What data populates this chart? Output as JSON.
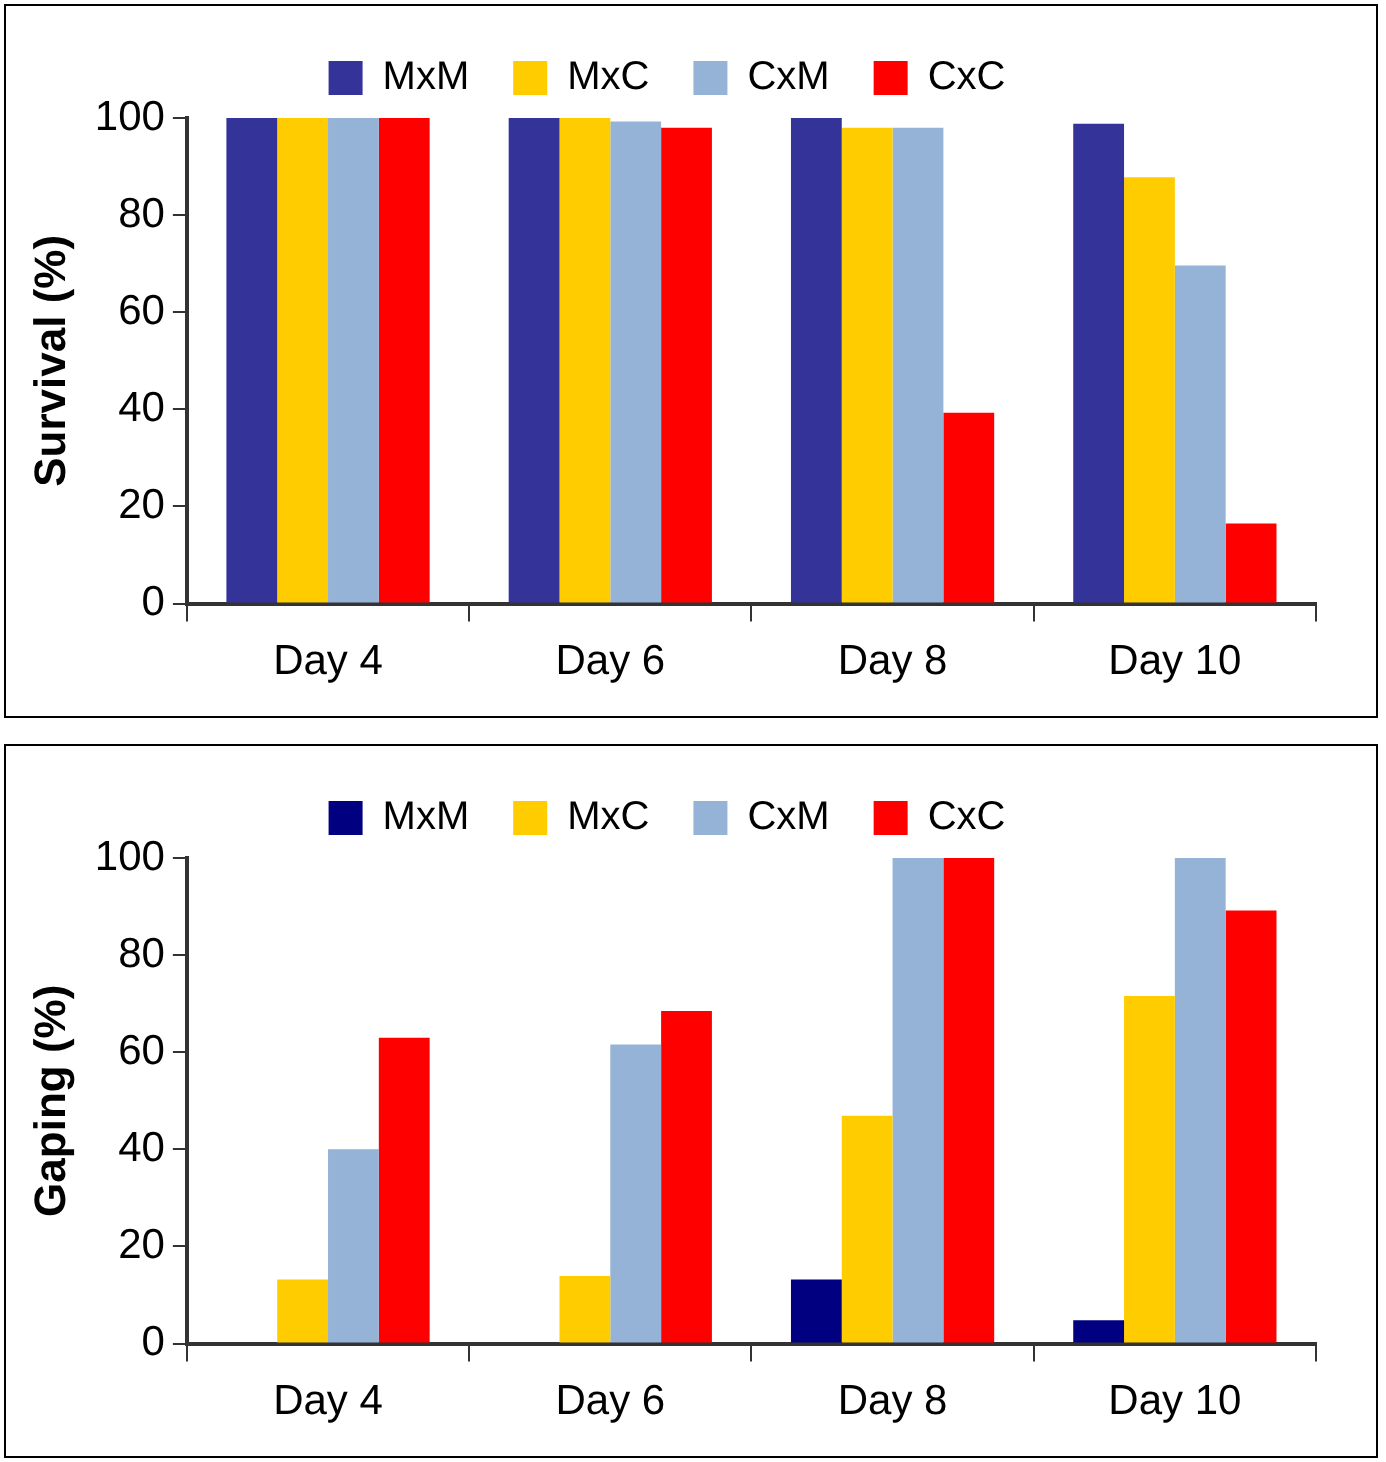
{
  "chart_data": [
    {
      "type": "bar",
      "ylabel": "Survival (%)",
      "categories": [
        "Day 4",
        "Day 6",
        "Day 8",
        "Day 10"
      ],
      "ylim": [
        0,
        100
      ],
      "yticks": [
        0,
        20,
        40,
        60,
        80,
        100
      ],
      "grid": false,
      "legend": "top",
      "series": [
        {
          "name": "MxM",
          "color": "#333399",
          "values": [
            100,
            100,
            100,
            98.8
          ]
        },
        {
          "name": "MxC",
          "color": "#ffcc00",
          "values": [
            100,
            100,
            98,
            87.8
          ]
        },
        {
          "name": "CxM",
          "color": "#95b3d7",
          "values": [
            100,
            99.3,
            98,
            69.6
          ]
        },
        {
          "name": "CxC",
          "color": "#ff0000",
          "values": [
            100,
            98,
            39.3,
            16.5
          ]
        }
      ]
    },
    {
      "type": "bar",
      "ylabel": "Gaping (%)",
      "categories": [
        "Day 4",
        "Day 6",
        "Day 8",
        "Day 10"
      ],
      "ylim": [
        0,
        100
      ],
      "yticks": [
        0,
        20,
        40,
        60,
        80,
        100
      ],
      "grid": false,
      "legend": "top",
      "series": [
        {
          "name": "MxM",
          "color": "#000080",
          "values": [
            0,
            0,
            13.2,
            4.8
          ]
        },
        {
          "name": "MxC",
          "color": "#ffcc00",
          "values": [
            13.2,
            13.9,
            46.9,
            71.6
          ]
        },
        {
          "name": "CxM",
          "color": "#95b3d7",
          "values": [
            40,
            61.6,
            100,
            100
          ]
        },
        {
          "name": "CxC",
          "color": "#ff0000",
          "values": [
            63,
            68.5,
            100,
            89.2
          ]
        }
      ]
    }
  ]
}
